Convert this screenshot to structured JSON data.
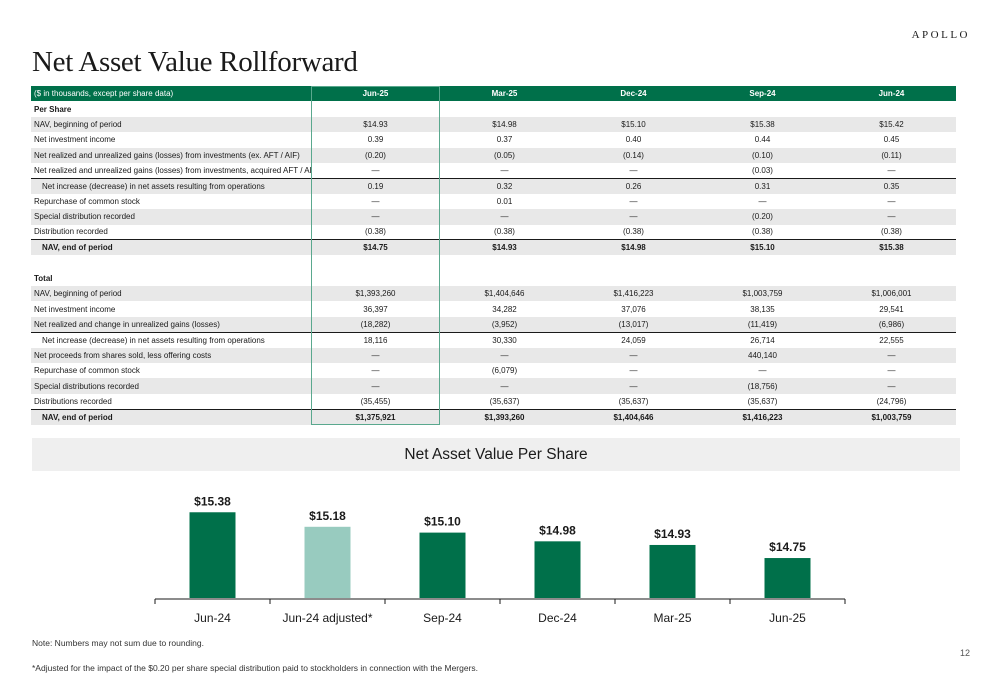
{
  "header": {
    "logo": "APOLLO",
    "title": "Net Asset Value Rollforward"
  },
  "table": {
    "header_label": "($ in thousands, except per share data)",
    "columns": [
      "Jun-25",
      "Mar-25",
      "Dec-24",
      "Sep-24",
      "Jun-24"
    ],
    "rows": [
      {
        "label": "Per Share",
        "values": [
          "",
          "",
          "",
          "",
          ""
        ],
        "style": "section"
      },
      {
        "label": "NAV, beginning of period",
        "values": [
          "$14.93",
          "$14.98",
          "$15.10",
          "$15.38",
          "$15.42"
        ],
        "style": "shade"
      },
      {
        "label": "Net investment income",
        "values": [
          "0.39",
          "0.37",
          "0.40",
          "0.44",
          "0.45"
        ],
        "style": ""
      },
      {
        "label": "Net realized and unrealized gains (losses) from investments (ex. AFT / AIF)",
        "values": [
          "(0.20)",
          "(0.05)",
          "(0.14)",
          "(0.10)",
          "(0.11)"
        ],
        "style": "shade"
      },
      {
        "label": "Net realized and unrealized gains (losses) from investments, acquired AFT / AIF",
        "values": [
          "—",
          "—",
          "—",
          "(0.03)",
          "—"
        ],
        "style": ""
      },
      {
        "label": "Net increase (decrease) in net assets resulting from operations",
        "values": [
          "0.19",
          "0.32",
          "0.26",
          "0.31",
          "0.35"
        ],
        "style": "shade sub topline"
      },
      {
        "label": "Repurchase of common stock",
        "values": [
          "—",
          "0.01",
          "—",
          "—",
          "—"
        ],
        "style": ""
      },
      {
        "label": "Special distribution recorded",
        "values": [
          "—",
          "—",
          "—",
          "(0.20)",
          "—"
        ],
        "style": "shade"
      },
      {
        "label": "Distribution recorded",
        "values": [
          "(0.38)",
          "(0.38)",
          "(0.38)",
          "(0.38)",
          "(0.38)"
        ],
        "style": ""
      },
      {
        "label": "NAV, end of period",
        "values": [
          "$14.75",
          "$14.93",
          "$14.98",
          "$15.10",
          "$15.38"
        ],
        "style": "shade bold indent topline"
      },
      {
        "label": "",
        "values": [
          "",
          "",
          "",
          "",
          ""
        ],
        "style": "spacer"
      },
      {
        "label": "Total",
        "values": [
          "",
          "",
          "",
          "",
          ""
        ],
        "style": "section"
      },
      {
        "label": "NAV, beginning of period",
        "values": [
          "$1,393,260",
          "$1,404,646",
          "$1,416,223",
          "$1,003,759",
          "$1,006,001"
        ],
        "style": "shade"
      },
      {
        "label": "Net investment income",
        "values": [
          "36,397",
          "34,282",
          "37,076",
          "38,135",
          "29,541"
        ],
        "style": ""
      },
      {
        "label": "Net realized and change in unrealized gains (losses)",
        "values": [
          "(18,282)",
          "(3,952)",
          "(13,017)",
          "(11,419)",
          "(6,986)"
        ],
        "style": "shade"
      },
      {
        "label": "Net increase (decrease) in net assets resulting from operations",
        "values": [
          "18,116",
          "30,330",
          "24,059",
          "26,714",
          "22,555"
        ],
        "style": "sub topline"
      },
      {
        "label": "Net proceeds from shares sold, less offering costs",
        "values": [
          "—",
          "—",
          "—",
          "440,140",
          "—"
        ],
        "style": "shade"
      },
      {
        "label": "Repurchase of common stock",
        "values": [
          "—",
          "(6,079)",
          "—",
          "—",
          "—"
        ],
        "style": ""
      },
      {
        "label": "Special distributions recorded",
        "values": [
          "—",
          "—",
          "—",
          "(18,756)",
          "—"
        ],
        "style": "shade"
      },
      {
        "label": "Distributions recorded",
        "values": [
          "(35,455)",
          "(35,637)",
          "(35,637)",
          "(35,637)",
          "(24,796)"
        ],
        "style": ""
      },
      {
        "label": "NAV, end of period",
        "values": [
          "$1,375,921",
          "$1,393,260",
          "$1,404,646",
          "$1,416,223",
          "$1,003,759"
        ],
        "style": "shade bold indent topline"
      }
    ]
  },
  "chart_data": {
    "type": "bar",
    "title": "Net Asset Value Per Share",
    "categories": [
      "Jun-24",
      "Jun-24 adjusted*",
      "Sep-24",
      "Dec-24",
      "Mar-25",
      "Jun-25"
    ],
    "values": [
      15.38,
      15.18,
      15.1,
      14.98,
      14.93,
      14.75
    ],
    "labels": [
      "$15.38",
      "$15.18",
      "$15.10",
      "$14.98",
      "$14.93",
      "$14.75"
    ],
    "colors": [
      "#00704a",
      "#98cbbf",
      "#00704a",
      "#00704a",
      "#00704a",
      "#00704a"
    ],
    "ylim": [
      14.2,
      15.48
    ],
    "grid": false,
    "legend": "none"
  },
  "notes": {
    "note": "Note:  Numbers may not sum due to rounding.",
    "footnote": "*Adjusted for the impact of the $0.20 per share special distribution paid to stockholders in connection with the Mergers.",
    "page": "12"
  }
}
